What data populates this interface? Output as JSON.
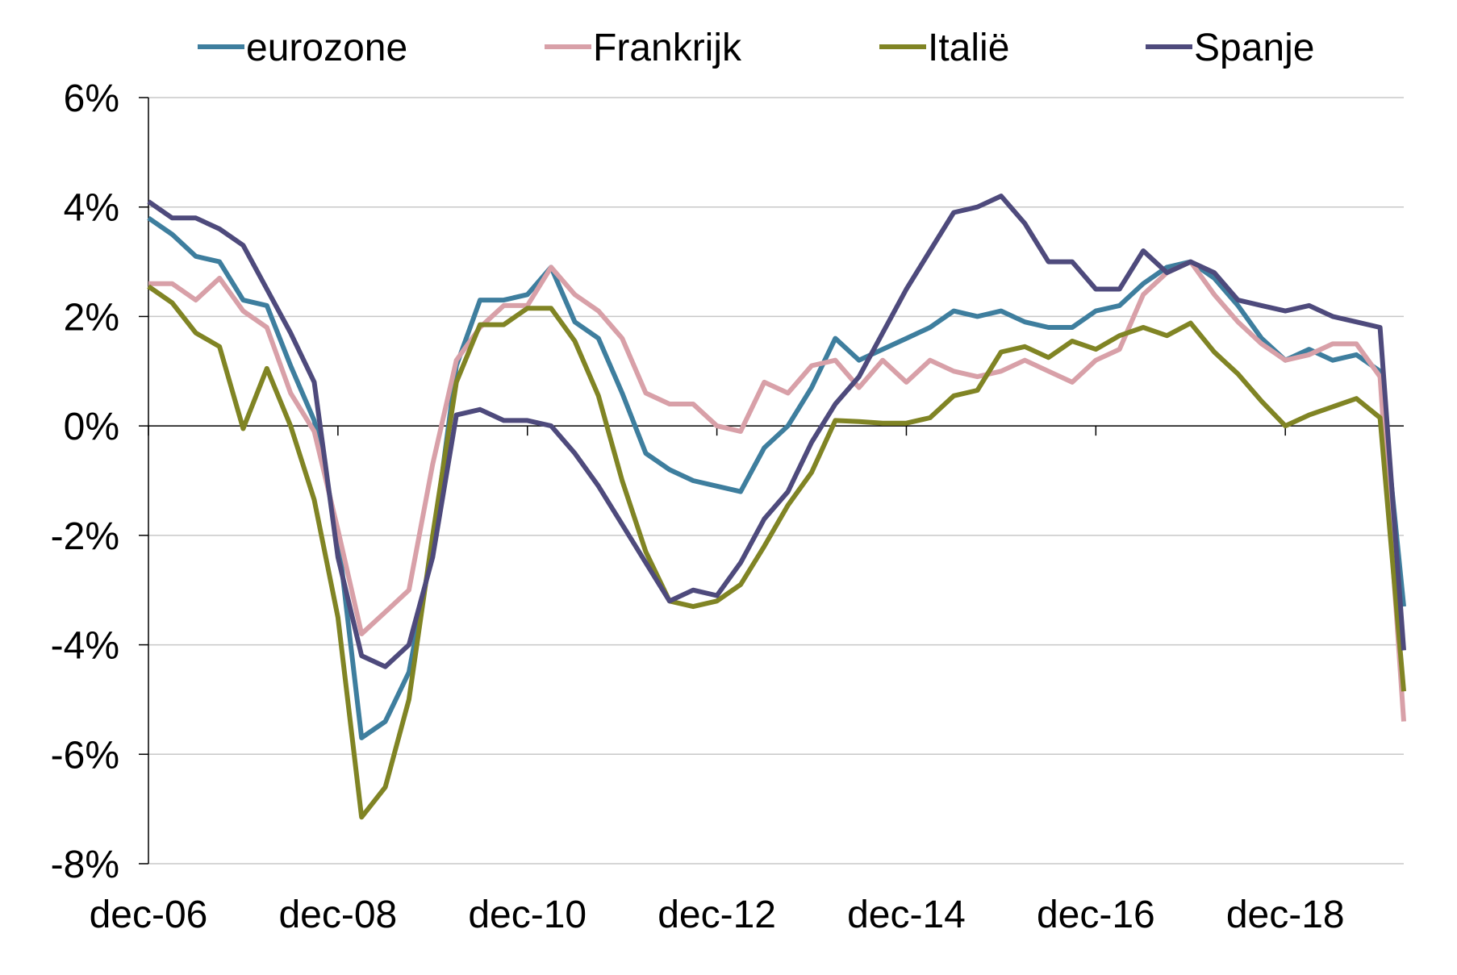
{
  "chart_data": {
    "type": "line",
    "title": "",
    "xlabel": "",
    "ylabel": "",
    "ylim": [
      -8,
      6
    ],
    "y_ticks": [
      6,
      4,
      2,
      0,
      -2,
      -4,
      -6,
      -8
    ],
    "y_tick_labels": [
      "6%",
      "4%",
      "2%",
      "0%",
      "-2%",
      "-4%",
      "-6%",
      "-8%"
    ],
    "x_tick_labels": [
      "dec-06",
      "dec-08",
      "dec-10",
      "dec-12",
      "dec-14",
      "dec-16",
      "dec-18"
    ],
    "x": [
      "dec-06",
      "mrt-07",
      "jun-07",
      "sep-07",
      "dec-07",
      "mrt-08",
      "jun-08",
      "sep-08",
      "dec-08",
      "mrt-09",
      "jun-09",
      "sep-09",
      "dec-09",
      "mrt-10",
      "jun-10",
      "sep-10",
      "dec-10",
      "mrt-11",
      "jun-11",
      "sep-11",
      "dec-11",
      "mrt-12",
      "jun-12",
      "sep-12",
      "dec-12",
      "mrt-13",
      "jun-13",
      "sep-13",
      "dec-13",
      "mrt-14",
      "jun-14",
      "sep-14",
      "dec-14",
      "mrt-15",
      "jun-15",
      "sep-15",
      "dec-15",
      "mrt-16",
      "jun-16",
      "sep-16",
      "dec-16",
      "mrt-17",
      "jun-17",
      "sep-17",
      "dec-17",
      "mrt-18",
      "jun-18",
      "sep-18",
      "dec-18",
      "mrt-19",
      "jun-19",
      "sep-19",
      "dec-19",
      "mrt-20"
    ],
    "grid": true,
    "legend_position": "top",
    "series": [
      {
        "name": "eurozone",
        "color": "#3E7E9E",
        "values": [
          3.8,
          3.5,
          3.1,
          3.0,
          2.3,
          2.2,
          1.1,
          0.1,
          -2.0,
          -5.7,
          -5.4,
          -4.5,
          -2.2,
          1.1,
          2.3,
          2.3,
          2.4,
          2.9,
          1.9,
          1.6,
          0.6,
          -0.5,
          -0.8,
          -1.0,
          -1.1,
          -1.2,
          -0.4,
          0.0,
          0.7,
          1.6,
          1.2,
          1.4,
          1.6,
          1.8,
          2.1,
          2.0,
          2.1,
          1.9,
          1.8,
          1.8,
          2.1,
          2.2,
          2.6,
          2.9,
          3.0,
          2.7,
          2.2,
          1.6,
          1.2,
          1.4,
          1.2,
          1.3,
          1.0,
          -3.3
        ]
      },
      {
        "name": "Frankrijk",
        "color": "#D8A0A8",
        "values": [
          2.6,
          2.6,
          2.3,
          2.7,
          2.1,
          1.8,
          0.6,
          -0.1,
          -1.9,
          -3.8,
          -3.4,
          -3.0,
          -0.7,
          1.2,
          1.8,
          2.2,
          2.2,
          2.9,
          2.4,
          2.1,
          1.6,
          0.6,
          0.4,
          0.4,
          0.0,
          -0.1,
          0.8,
          0.6,
          1.1,
          1.2,
          0.7,
          1.2,
          0.8,
          1.2,
          1.0,
          0.9,
          1.0,
          1.2,
          1.0,
          0.8,
          1.2,
          1.4,
          2.4,
          2.8,
          3.0,
          2.4,
          1.9,
          1.5,
          1.2,
          1.3,
          1.5,
          1.5,
          0.9,
          -5.4
        ]
      },
      {
        "name": "Italië",
        "color": "#808424",
        "values": [
          2.55,
          2.25,
          1.7,
          1.45,
          -0.05,
          1.05,
          0.0,
          -1.35,
          -3.5,
          -7.15,
          -6.6,
          -5.0,
          -2.0,
          0.8,
          1.85,
          1.85,
          2.15,
          2.15,
          1.55,
          0.55,
          -1.0,
          -2.3,
          -3.2,
          -3.3,
          -3.2,
          -2.9,
          -2.2,
          -1.45,
          -0.85,
          0.1,
          0.08,
          0.05,
          0.05,
          0.15,
          0.55,
          0.65,
          1.35,
          1.45,
          1.25,
          1.55,
          1.4,
          1.65,
          1.8,
          1.65,
          1.88,
          1.35,
          0.95,
          0.45,
          0.0,
          0.2,
          0.35,
          0.5,
          0.15,
          -4.85
        ]
      },
      {
        "name": "Spanje",
        "color": "#4E4A7C",
        "values": [
          4.1,
          3.8,
          3.8,
          3.6,
          3.3,
          2.5,
          1.7,
          0.8,
          -2.4,
          -4.2,
          -4.4,
          -4.0,
          -2.4,
          0.2,
          0.3,
          0.1,
          0.1,
          0.0,
          -0.5,
          -1.1,
          -1.8,
          -2.5,
          -3.2,
          -3.0,
          -3.1,
          -2.5,
          -1.7,
          -1.2,
          -0.3,
          0.4,
          0.9,
          1.7,
          2.5,
          3.2,
          3.9,
          4.0,
          4.2,
          3.7,
          3.0,
          3.0,
          2.5,
          2.5,
          3.2,
          2.8,
          3.0,
          2.8,
          2.3,
          2.2,
          2.1,
          2.2,
          2.0,
          1.9,
          1.8,
          -4.1
        ]
      }
    ]
  }
}
